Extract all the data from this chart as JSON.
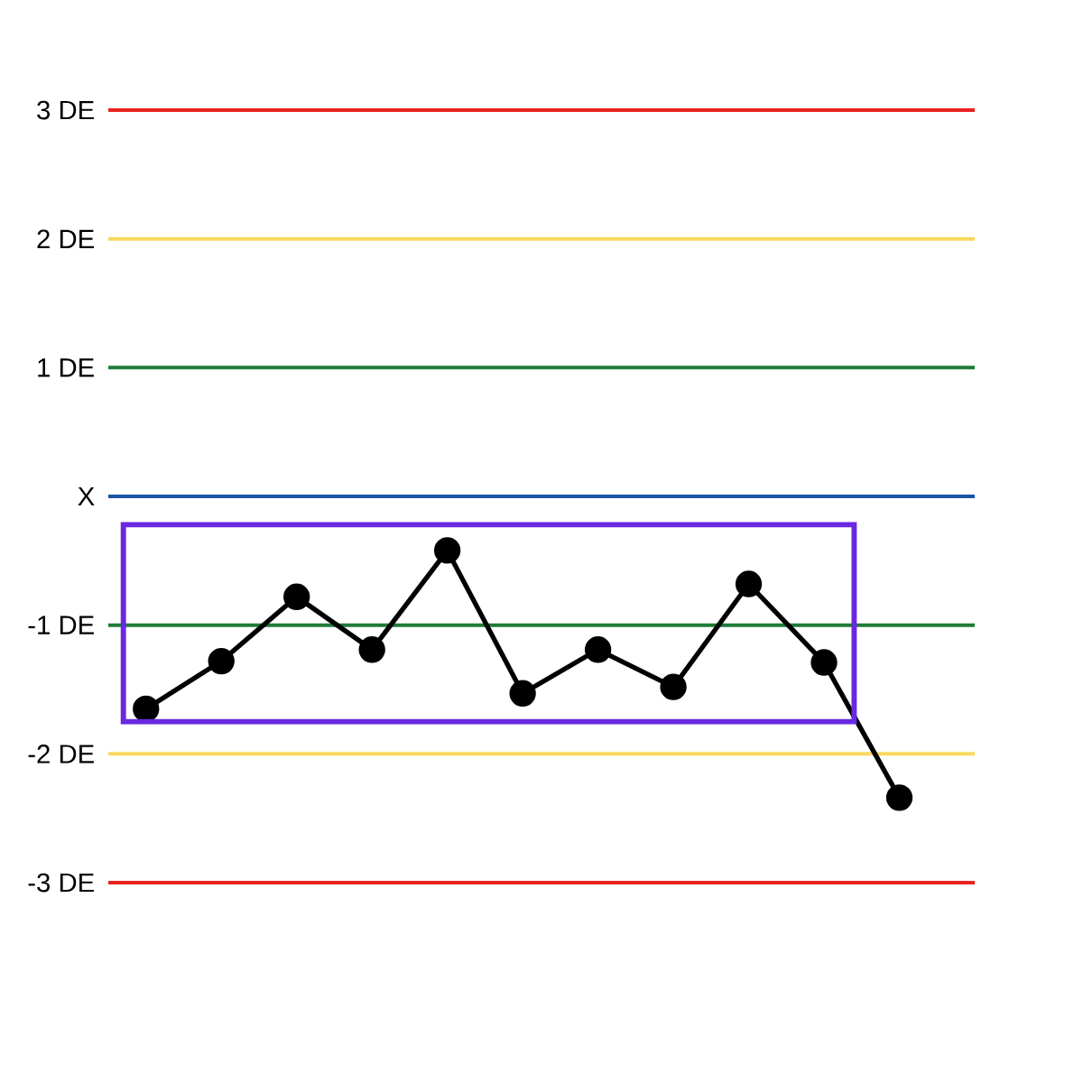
{
  "chart_data": {
    "type": "line",
    "categories": [
      null,
      null,
      null,
      null,
      null,
      null,
      null,
      null,
      null,
      null,
      null
    ],
    "values": [
      -1.65,
      -1.28,
      -0.78,
      -1.19,
      -0.42,
      -1.53,
      -1.19,
      -1.48,
      -0.68,
      -1.29,
      -2.34
    ],
    "color": "#000000",
    "marker": "circle",
    "ylim": [
      -3,
      3
    ],
    "yticks": [
      {
        "value": 3,
        "label": "3 DE"
      },
      {
        "value": 2,
        "label": "2 DE"
      },
      {
        "value": 1,
        "label": "1 DE"
      },
      {
        "value": 0,
        "label": "X"
      },
      {
        "value": -1,
        "label": "-1 DE"
      },
      {
        "value": -2,
        "label": "-2 DE"
      },
      {
        "value": -3,
        "label": "-3 DE"
      }
    ],
    "tick_labels": "y",
    "ref_lines": [
      {
        "axis": "y",
        "value": 3,
        "color": "#e8231f"
      },
      {
        "axis": "y",
        "value": 2,
        "color": "#f9d85c"
      },
      {
        "axis": "y",
        "value": 1,
        "color": "#1e7b36"
      },
      {
        "axis": "y",
        "value": 0,
        "color": "#1b54a7"
      },
      {
        "axis": "y",
        "value": -1,
        "color": "#1e7b36"
      },
      {
        "axis": "y",
        "value": -2,
        "color": "#f9d85c"
      },
      {
        "axis": "y",
        "value": -3,
        "color": "#e8231f"
      }
    ]
  }
}
